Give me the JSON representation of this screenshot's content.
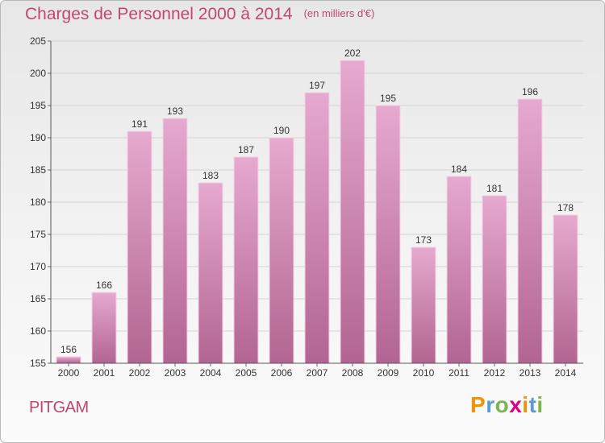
{
  "header": {
    "title": "Charges de Personnel 2000 à 2014",
    "unit": "(en milliers d'€)"
  },
  "footer": {
    "commune": "PITGAM",
    "brand": "Proxiti",
    "brand_colors": [
      "#f39200",
      "#5b9bd5",
      "#7ab648",
      "#e0007a",
      "#f39200",
      "#5b9bd5",
      "#7ab648"
    ]
  },
  "colors": {
    "bar_top": "#e6a9cf",
    "bar_bottom": "#b26592",
    "bar_edge": "#f4d2e7",
    "label": "#333333",
    "grid": "#d2d2d2"
  },
  "chart_data": {
    "type": "bar",
    "title": "Charges de Personnel 2000 à 2014",
    "subtitle": "(en milliers d'€)",
    "xlabel": "",
    "ylabel": "",
    "categories": [
      "2000",
      "2001",
      "2002",
      "2003",
      "2004",
      "2005",
      "2006",
      "2007",
      "2008",
      "2009",
      "2010",
      "2011",
      "2012",
      "2013",
      "2014"
    ],
    "values": [
      156,
      166,
      191,
      193,
      183,
      187,
      190,
      197,
      202,
      195,
      173,
      184,
      181,
      196,
      178
    ],
    "ylim": [
      155,
      205
    ],
    "yticks": [
      155,
      160,
      165,
      170,
      175,
      180,
      185,
      190,
      195,
      200,
      205
    ],
    "grid": true,
    "data_labels": true,
    "legend": "none"
  }
}
